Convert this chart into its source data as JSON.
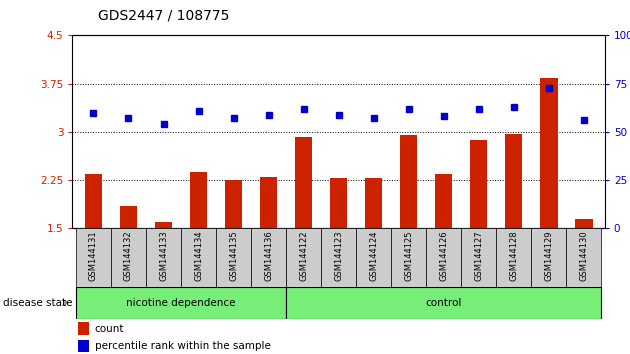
{
  "title": "GDS2447 / 108775",
  "samples": [
    "GSM144131",
    "GSM144132",
    "GSM144133",
    "GSM144134",
    "GSM144135",
    "GSM144136",
    "GSM144122",
    "GSM144123",
    "GSM144124",
    "GSM144125",
    "GSM144126",
    "GSM144127",
    "GSM144128",
    "GSM144129",
    "GSM144130"
  ],
  "bar_values": [
    2.35,
    1.85,
    1.6,
    2.38,
    2.25,
    2.3,
    2.92,
    2.28,
    2.28,
    2.95,
    2.35,
    2.88,
    2.97,
    3.83,
    1.65
  ],
  "dot_values": [
    3.3,
    3.22,
    3.12,
    3.32,
    3.22,
    3.27,
    3.35,
    3.27,
    3.22,
    3.35,
    3.25,
    3.35,
    3.38,
    3.68,
    3.18
  ],
  "bar_color": "#cc2200",
  "dot_color": "#0000cc",
  "ylim_left": [
    1.5,
    4.5
  ],
  "ylim_right": [
    0,
    100
  ],
  "yticks_left": [
    1.5,
    2.25,
    3.0,
    3.75,
    4.5
  ],
  "yticks_right": [
    0,
    25,
    50,
    75,
    100
  ],
  "ytick_labels_left": [
    "1.5",
    "2.25",
    "3",
    "3.75",
    "4.5"
  ],
  "ytick_labels_right": [
    "0",
    "25",
    "50",
    "75",
    "100%"
  ],
  "grid_lines": [
    2.25,
    3.0,
    3.75
  ],
  "nicotine_samples": 6,
  "control_samples": 9,
  "group_label_nicotine": "nicotine dependence",
  "group_label_control": "control",
  "disease_state_label": "disease state",
  "legend_count": "count",
  "legend_percentile": "percentile rank within the sample",
  "group_bg_color": "#77ee77",
  "sample_bg_color": "#cccccc",
  "title_fontsize": 10,
  "tick_fontsize": 7.5,
  "bar_width": 0.5
}
